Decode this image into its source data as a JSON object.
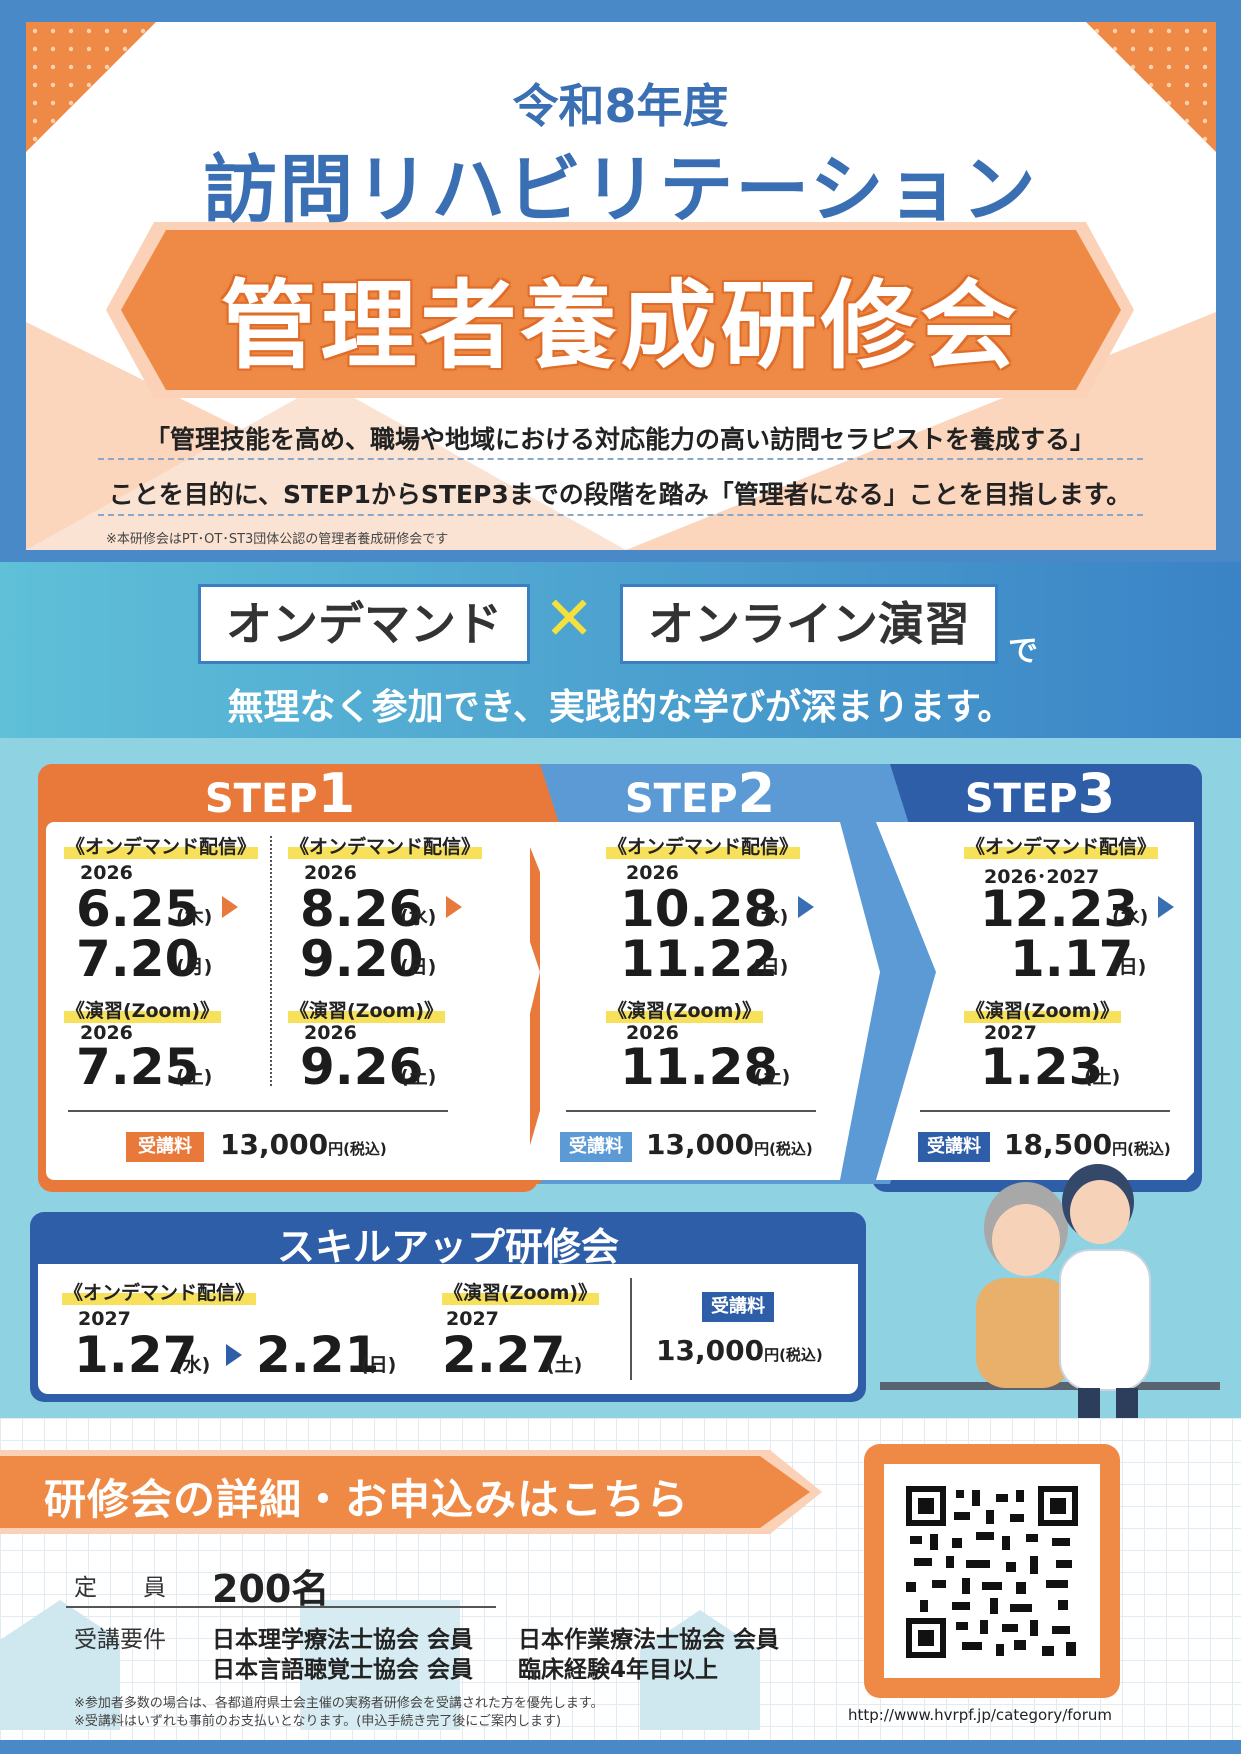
{
  "header": {
    "era": "令和8年度",
    "title": "訪問リハビリテーション",
    "banner": "管理者養成研修会",
    "purpose_line1": "「管理技能を高め、職場や地域における対応能力の高い訪問セラピストを養成する」",
    "purpose_line2": "ことを目的に、STEP1からSTEP3までの段階を踏み「管理者になる」ことを目指します。",
    "note": "※本研修会はPT･OT･ST3団体公認の管理者養成研修会です"
  },
  "format": {
    "ondemand": "オンデマンド",
    "cross": "✕",
    "online": "オンライン演習",
    "de": "で",
    "message": "無理なく参加でき、実践的な学びが深まります。"
  },
  "labels": {
    "ondemand": "《オンデマンド配信》",
    "zoom": "《演習(Zoom)》",
    "fee": "受講料",
    "tax": "円(税込)"
  },
  "step1": {
    "step": "STEP",
    "num": "1",
    "a": {
      "od_year": "2026",
      "od_start": "6.25",
      "od_start_dow": "(木)",
      "od_end": "7.20",
      "od_end_dow": "(月)",
      "zoom_year": "2026",
      "zoom_date": "7.25",
      "zoom_dow": "(土)"
    },
    "b": {
      "od_year": "2026",
      "od_start": "8.26",
      "od_start_dow": "(水)",
      "od_end": "9.20",
      "od_end_dow": "(日)",
      "zoom_year": "2026",
      "zoom_date": "9.26",
      "zoom_dow": "(土)"
    },
    "fee": "13,000"
  },
  "step2": {
    "step": "STEP",
    "num": "2",
    "od_year": "2026",
    "od_start": "10.28",
    "od_start_dow": "(水)",
    "od_end": "11.22",
    "od_end_dow": "(日)",
    "zoom_year": "2026",
    "zoom_date": "11.28",
    "zoom_dow": "(土)",
    "fee": "13,000"
  },
  "step3": {
    "step": "STEP",
    "num": "3",
    "od_year": "2026･2027",
    "od_start": "12.23",
    "od_start_dow": "(水)",
    "od_end": "1.17",
    "od_end_dow": "(日)",
    "zoom_year": "2027",
    "zoom_date": "1.23",
    "zoom_dow": "(土)",
    "fee": "18,500"
  },
  "skillup": {
    "title": "スキルアップ研修会",
    "od_year": "2027",
    "od_start": "1.27",
    "od_start_dow": "(水)",
    "od_end": "2.21",
    "od_end_dow": "(日)",
    "zoom_year": "2027",
    "zoom_date": "2.27",
    "zoom_dow": "(土)",
    "fee": "13,000"
  },
  "footer": {
    "cta": "研修会の詳細・お申込みはこちら",
    "capacity_label": "定　　員",
    "capacity_value": "200名",
    "req_label": "受講要件",
    "req1": "日本理学療法士協会 会員",
    "req2": "日本作業療法士協会 会員",
    "req3": "日本言語聴覚士協会 会員",
    "req4": "臨床経験4年目以上",
    "note1": "※参加者多数の場合は、各都道府県士会主催の実務者研修会を受講された方を優先します。",
    "note2": "※受講料はいずれも事前のお支払いとなります。(申込手続き完了後にご案内します)",
    "url": "http://www.hvrpf.jp/category/forum"
  },
  "colors": {
    "orange": "#e8793a",
    "blue": "#3a6fb4",
    "light_blue": "#5c9ad6",
    "navy": "#2f5ea8",
    "cyan": "#8fd2e2"
  }
}
